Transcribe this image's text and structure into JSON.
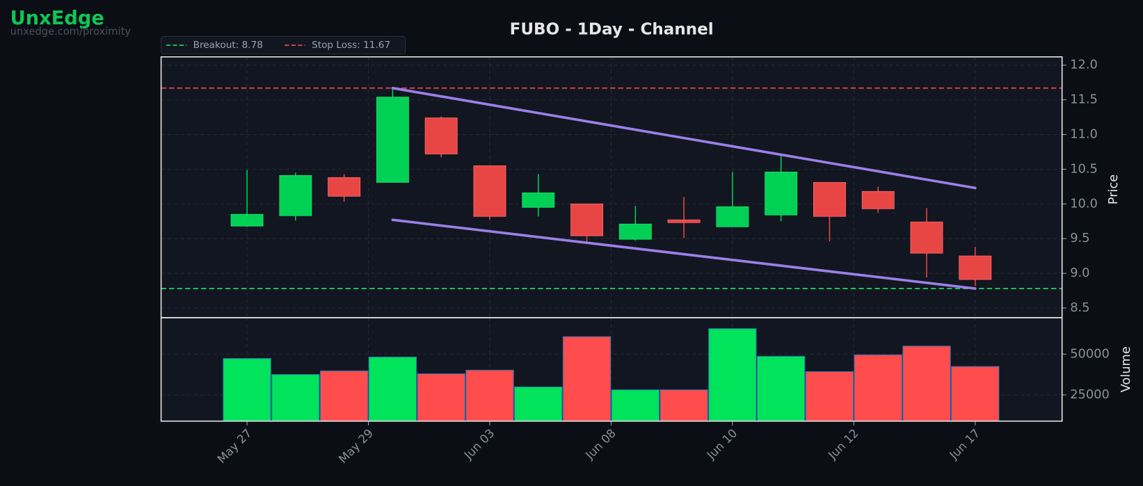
{
  "header": {
    "brand": "UnxEdge",
    "url": "unxedge.com/proximity"
  },
  "chart_data": {
    "type": "candlestick",
    "title": "FUBO - 1Day - Channel",
    "ylabel": "Price",
    "x": [
      0,
      1,
      2,
      3,
      4,
      5,
      6,
      7,
      8,
      9,
      10,
      11,
      12,
      13,
      14,
      15
    ],
    "xlim": [
      -1.77,
      16.79
    ],
    "xticks": [
      {
        "value": 0,
        "label": "May 27"
      },
      {
        "value": 2.5,
        "label": "May 29"
      },
      {
        "value": 5,
        "label": "Jun 03"
      },
      {
        "value": 7.5,
        "label": "Jun 08"
      },
      {
        "value": 10,
        "label": "Jun 10"
      },
      {
        "value": 12.5,
        "label": "Jun 12"
      },
      {
        "value": 15,
        "label": "Jun 17"
      }
    ],
    "open": [
      9.68,
      9.83,
      10.38,
      10.31,
      11.24,
      10.55,
      9.95,
      10.0,
      9.49,
      9.77,
      9.67,
      9.84,
      10.31,
      10.18,
      9.74,
      9.25
    ],
    "high": [
      10.49,
      10.45,
      10.43,
      11.68,
      11.26,
      10.55,
      10.43,
      10.0,
      9.97,
      10.1,
      10.46,
      10.71,
      10.31,
      10.25,
      9.94,
      9.38
    ],
    "low": [
      9.67,
      9.76,
      10.03,
      10.31,
      10.67,
      9.77,
      9.82,
      9.46,
      9.47,
      9.51,
      9.67,
      9.75,
      9.46,
      9.87,
      8.94,
      8.82
    ],
    "close": [
      9.85,
      10.41,
      10.11,
      11.54,
      10.72,
      9.82,
      10.16,
      9.54,
      9.71,
      9.73,
      9.96,
      10.46,
      9.82,
      9.93,
      9.29,
      8.91
    ],
    "up_color": "#00d154",
    "down_color": "#e84545",
    "ylim": [
      8.36,
      12.12
    ],
    "yticks": [
      8.5,
      {
        "value": 9,
        "label": "9.0"
      },
      9.5,
      {
        "value": 10,
        "label": "10.0"
      },
      10.5,
      {
        "value": 11,
        "label": "11.0"
      },
      11.5,
      {
        "value": 12,
        "label": "12.0"
      }
    ],
    "grid": true,
    "levels": [
      {
        "name": "Breakout: 8.78",
        "value": 8.78,
        "color": "#1fbf5a"
      },
      {
        "name": "Stop Loss: 11.67",
        "value": 11.67,
        "color": "#d9454a"
      }
    ],
    "channels": [
      {
        "x": [
          3,
          15
        ],
        "values": [
          11.67,
          10.23
        ]
      },
      {
        "x": [
          3,
          15
        ],
        "values": [
          9.77,
          8.78
        ]
      }
    ],
    "channel_color": "#9b7fe8",
    "volume": {
      "ylabel": "Volume",
      "values": [
        47320,
        37500,
        39730,
        48210,
        37950,
        40180,
        29910,
        60710,
        28120,
        28120,
        65620,
        48660,
        39290,
        49550,
        54910,
        42410
      ],
      "up_color": "#00e35b",
      "down_color": "#ff4d4d",
      "ylim": [
        8930,
        72320
      ],
      "yticks": [
        25000,
        50000
      ]
    }
  }
}
